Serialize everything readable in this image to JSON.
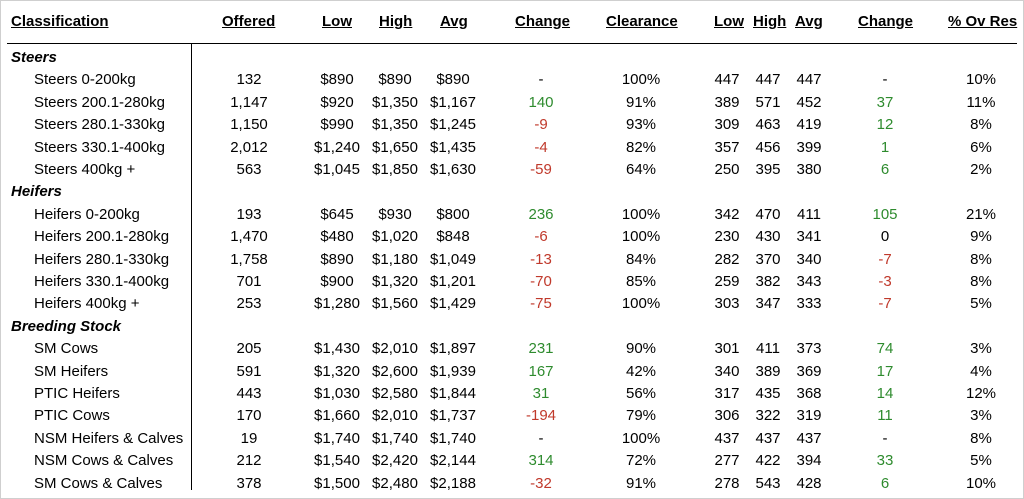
{
  "colors": {
    "positive": "#2e8b2e",
    "negative": "#c0392b"
  },
  "headers": [
    "Classification",
    "Offered",
    "Low",
    "High",
    "Avg",
    "Change",
    "Clearance",
    "Low",
    "High",
    "Avg",
    "Change",
    "% Ov Res"
  ],
  "groups": [
    {
      "title": "Steers",
      "rows": [
        {
          "name": "Steers 0-200kg",
          "offered": "132",
          "low": "$890",
          "high": "$890",
          "avg": "$890",
          "change": "-",
          "change_dir": "none",
          "clearance": "100%",
          "low2": "447",
          "high2": "447",
          "avg2": "447",
          "change2": "-",
          "change2_dir": "none",
          "ovres": "10%"
        },
        {
          "name": "Steers 200.1-280kg",
          "offered": "1,147",
          "low": "$920",
          "high": "$1,350",
          "avg": "$1,167",
          "change": "140",
          "change_dir": "pos",
          "clearance": "91%",
          "low2": "389",
          "high2": "571",
          "avg2": "452",
          "change2": "37",
          "change2_dir": "pos",
          "ovres": "11%"
        },
        {
          "name": "Steers 280.1-330kg",
          "offered": "1,150",
          "low": "$990",
          "high": "$1,350",
          "avg": "$1,245",
          "change": "-9",
          "change_dir": "neg",
          "clearance": "93%",
          "low2": "309",
          "high2": "463",
          "avg2": "419",
          "change2": "12",
          "change2_dir": "pos",
          "ovres": "8%"
        },
        {
          "name": "Steers 330.1-400kg",
          "offered": "2,012",
          "low": "$1,240",
          "high": "$1,650",
          "avg": "$1,435",
          "change": "-4",
          "change_dir": "neg",
          "clearance": "82%",
          "low2": "357",
          "high2": "456",
          "avg2": "399",
          "change2": "1",
          "change2_dir": "pos",
          "ovres": "6%"
        },
        {
          "name": "Steers 400kg +",
          "offered": "563",
          "low": "$1,045",
          "high": "$1,850",
          "avg": "$1,630",
          "change": "-59",
          "change_dir": "neg",
          "clearance": "64%",
          "low2": "250",
          "high2": "395",
          "avg2": "380",
          "change2": "6",
          "change2_dir": "pos",
          "ovres": "2%"
        }
      ]
    },
    {
      "title": "Heifers",
      "rows": [
        {
          "name": "Heifers 0-200kg",
          "offered": "193",
          "low": "$645",
          "high": "$930",
          "avg": "$800",
          "change": "236",
          "change_dir": "pos",
          "clearance": "100%",
          "low2": "342",
          "high2": "470",
          "avg2": "411",
          "change2": "105",
          "change2_dir": "pos",
          "ovres": "21%"
        },
        {
          "name": "Heifers 200.1-280kg",
          "offered": "1,470",
          "low": "$480",
          "high": "$1,020",
          "avg": "$848",
          "change": "-6",
          "change_dir": "neg",
          "clearance": "100%",
          "low2": "230",
          "high2": "430",
          "avg2": "341",
          "change2": "0",
          "change2_dir": "none",
          "ovres": "9%"
        },
        {
          "name": "Heifers 280.1-330kg",
          "offered": "1,758",
          "low": "$890",
          "high": "$1,180",
          "avg": "$1,049",
          "change": "-13",
          "change_dir": "neg",
          "clearance": "84%",
          "low2": "282",
          "high2": "370",
          "avg2": "340",
          "change2": "-7",
          "change2_dir": "neg",
          "ovres": "8%"
        },
        {
          "name": "Heifers 330.1-400kg",
          "offered": "701",
          "low": "$900",
          "high": "$1,320",
          "avg": "$1,201",
          "change": "-70",
          "change_dir": "neg",
          "clearance": "85%",
          "low2": "259",
          "high2": "382",
          "avg2": "343",
          "change2": "-3",
          "change2_dir": "neg",
          "ovres": "8%"
        },
        {
          "name": "Heifers 400kg +",
          "offered": "253",
          "low": "$1,280",
          "high": "$1,560",
          "avg": "$1,429",
          "change": "-75",
          "change_dir": "neg",
          "clearance": "100%",
          "low2": "303",
          "high2": "347",
          "avg2": "333",
          "change2": "-7",
          "change2_dir": "neg",
          "ovres": "5%"
        }
      ]
    },
    {
      "title": "Breeding Stock",
      "rows": [
        {
          "name": "SM Cows",
          "offered": "205",
          "low": "$1,430",
          "high": "$2,010",
          "avg": "$1,897",
          "change": "231",
          "change_dir": "pos",
          "clearance": "90%",
          "low2": "301",
          "high2": "411",
          "avg2": "373",
          "change2": "74",
          "change2_dir": "pos",
          "ovres": "3%"
        },
        {
          "name": "SM Heifers",
          "offered": "591",
          "low": "$1,320",
          "high": "$2,600",
          "avg": "$1,939",
          "change": "167",
          "change_dir": "pos",
          "clearance": "42%",
          "low2": "340",
          "high2": "389",
          "avg2": "369",
          "change2": "17",
          "change2_dir": "pos",
          "ovres": "4%"
        },
        {
          "name": "PTIC Heifers",
          "offered": "443",
          "low": "$1,030",
          "high": "$2,580",
          "avg": "$1,844",
          "change": "31",
          "change_dir": "pos",
          "clearance": "56%",
          "low2": "317",
          "high2": "435",
          "avg2": "368",
          "change2": "14",
          "change2_dir": "pos",
          "ovres": "12%"
        },
        {
          "name": "PTIC Cows",
          "offered": "170",
          "low": "$1,660",
          "high": "$2,010",
          "avg": "$1,737",
          "change": "-194",
          "change_dir": "neg",
          "clearance": "79%",
          "low2": "306",
          "high2": "322",
          "avg2": "319",
          "change2": "11",
          "change2_dir": "pos",
          "ovres": "3%"
        },
        {
          "name": "NSM Heifers & Calves",
          "offered": "19",
          "low": "$1,740",
          "high": "$1,740",
          "avg": "$1,740",
          "change": "-",
          "change_dir": "none",
          "clearance": "100%",
          "low2": "437",
          "high2": "437",
          "avg2": "437",
          "change2": "-",
          "change2_dir": "none",
          "ovres": "8%"
        },
        {
          "name": "NSM Cows & Calves",
          "offered": "212",
          "low": "$1,540",
          "high": "$2,420",
          "avg": "$2,144",
          "change": "314",
          "change_dir": "pos",
          "clearance": "72%",
          "low2": "277",
          "high2": "422",
          "avg2": "394",
          "change2": "33",
          "change2_dir": "pos",
          "ovres": "5%"
        },
        {
          "name": "SM Cows & Calves",
          "offered": "378",
          "low": "$1,500",
          "high": "$2,480",
          "avg": "$2,188",
          "change": "-32",
          "change_dir": "neg",
          "clearance": "91%",
          "low2": "278",
          "high2": "543",
          "avg2": "428",
          "change2": "6",
          "change2_dir": "pos",
          "ovres": "10%"
        }
      ]
    }
  ]
}
